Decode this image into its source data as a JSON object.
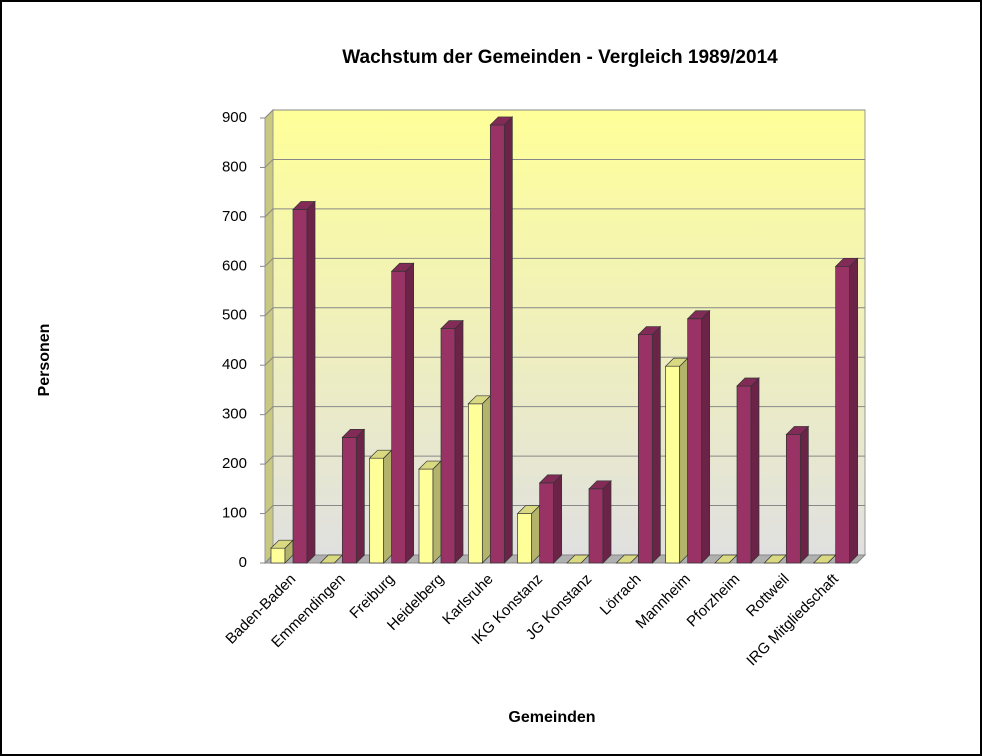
{
  "chart_data": {
    "type": "bar3d",
    "title": "Wachstum der Gemeinden - Vergleich 1989/2014",
    "x_label": "Gemeinden",
    "y_label": "Personen",
    "categories": [
      "Baden-Baden",
      "Emmendingen",
      "Freiburg",
      "Heidelberg",
      "Karlsruhe",
      "IKG Konstanz",
      "JG Konstanz",
      "Lörrach",
      "Mannheim",
      "Pforzheim",
      "Rottweil",
      "IRG Mitgliedschaft"
    ],
    "series": [
      {
        "color": "#ffff99",
        "values": [
          30,
          0,
          212,
          190,
          322,
          100,
          0,
          0,
          398,
          0,
          0,
          0
        ]
      },
      {
        "color": "#993366",
        "values": [
          715,
          254,
          590,
          474,
          886,
          162,
          150,
          462,
          494,
          358,
          260,
          600
        ]
      }
    ],
    "ylim": [
      0,
      900
    ],
    "yticks": [
      0,
      100,
      200,
      300,
      400,
      500,
      600,
      700,
      800,
      900
    ],
    "grid": true
  }
}
